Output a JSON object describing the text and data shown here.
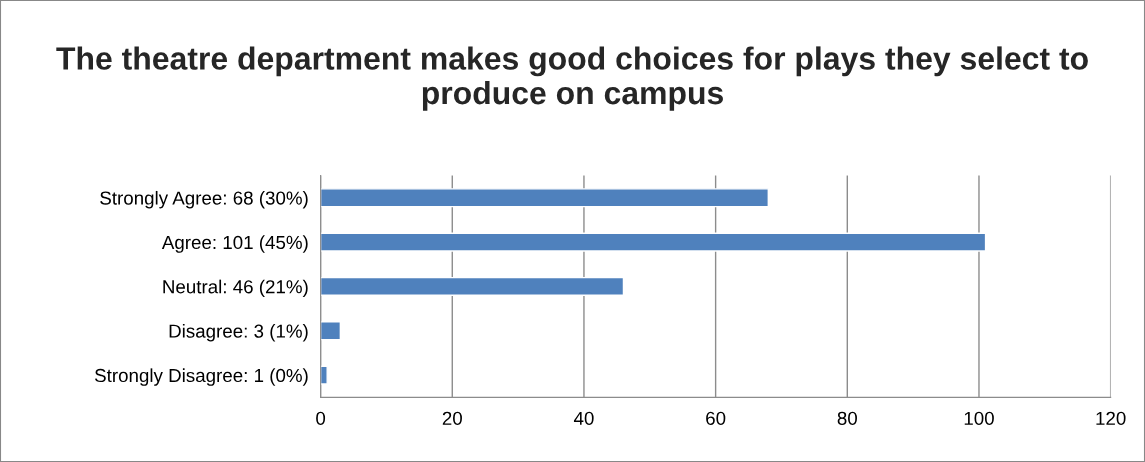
{
  "chart_data": {
    "type": "bar",
    "orientation": "horizontal",
    "title": "The theatre department makes good choices for plays they select to produce on campus",
    "categories": [
      "Strongly Agree: 68 (30%)",
      "Agree: 101 (45%)",
      "Neutral: 46 (21%)",
      "Disagree: 3 (1%)",
      "Strongly Disagree: 1 (0%)"
    ],
    "values": [
      68,
      101,
      46,
      3,
      1
    ],
    "color": "#4f81bd",
    "xlim": [
      0,
      120
    ],
    "xticks": [
      0,
      20,
      40,
      60,
      80,
      100,
      120
    ],
    "grid": "x"
  }
}
